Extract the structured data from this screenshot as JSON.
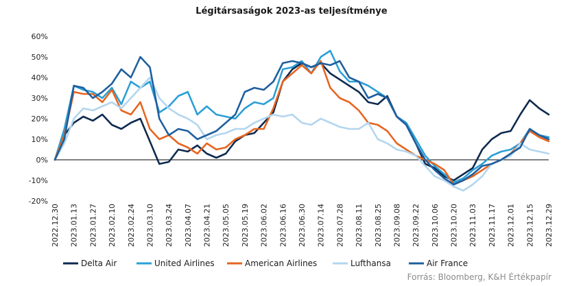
{
  "chart_data": {
    "type": "line",
    "title": "Légitársaságok 2023-as teljesítménye",
    "ylim": [
      -20,
      60
    ],
    "yticks": [
      "-20%",
      "-10%",
      "0%",
      "10%",
      "20%",
      "30%",
      "40%",
      "50%",
      "60%"
    ],
    "ytick_values": [
      -20,
      -10,
      0,
      10,
      20,
      30,
      40,
      50,
      60
    ],
    "xlim": [
      "2022-12-30",
      "2023-12-29"
    ],
    "xtick_labels": [
      "2022.12.30",
      "2023.01.13",
      "2023.01.27",
      "2023.02.10",
      "2023.02.24",
      "2023.03.10",
      "2023.03.24",
      "2023.04.07",
      "2023.04.21",
      "2023.05.05",
      "2023.05.19",
      "2023.06.02",
      "2023.06.16",
      "2023.06.30",
      "2023.07.14",
      "2023.07.28",
      "2023.08.11",
      "2023.08.25",
      "2023.09.08",
      "2023.09.22",
      "2023.10.06",
      "2023.10.20",
      "2023.11.03",
      "2023.11.17",
      "2023.12.01",
      "2023.12.15",
      "2023.12.29"
    ],
    "grid": false,
    "legend_position": "bottom",
    "source": "Forrás: Bloomberg, K&H Értékpapír",
    "series": [
      {
        "name": "Delta Air",
        "color": "#0d2a4e",
        "x": [
          "2022-12-30",
          "2023-01-06",
          "2023-01-13",
          "2023-01-20",
          "2023-01-27",
          "2023-02-03",
          "2023-02-10",
          "2023-02-17",
          "2023-02-24",
          "2023-03-03",
          "2023-03-10",
          "2023-03-17",
          "2023-03-24",
          "2023-03-31",
          "2023-04-07",
          "2023-04-14",
          "2023-04-21",
          "2023-04-28",
          "2023-05-05",
          "2023-05-12",
          "2023-05-19",
          "2023-05-26",
          "2023-06-02",
          "2023-06-09",
          "2023-06-16",
          "2023-06-23",
          "2023-06-30",
          "2023-07-07",
          "2023-07-14",
          "2023-07-21",
          "2023-07-28",
          "2023-08-04",
          "2023-08-11",
          "2023-08-18",
          "2023-08-25",
          "2023-09-01",
          "2023-09-08",
          "2023-09-15",
          "2023-09-22",
          "2023-09-29",
          "2023-10-06",
          "2023-10-13",
          "2023-10-20",
          "2023-10-27",
          "2023-11-03",
          "2023-11-10",
          "2023-11-17",
          "2023-11-24",
          "2023-12-01",
          "2023-12-08",
          "2023-12-15",
          "2023-12-22",
          "2023-12-29"
        ],
        "values": [
          0,
          12,
          18,
          21,
          19,
          22,
          17,
          15,
          18,
          20,
          9,
          -2,
          -1,
          5,
          4,
          7,
          3,
          1,
          3,
          9,
          12,
          13,
          18,
          23,
          38,
          44,
          47,
          45,
          47,
          42,
          39,
          36,
          33,
          28,
          27,
          31,
          21,
          17,
          8,
          -2,
          -4,
          -8,
          -10,
          -7,
          -4,
          5,
          10,
          13,
          14,
          22,
          29,
          25,
          22
        ]
      },
      {
        "name": "United Airlines",
        "color": "#2b9fd6",
        "x": [
          "2022-12-30",
          "2023-01-06",
          "2023-01-13",
          "2023-01-20",
          "2023-01-27",
          "2023-02-03",
          "2023-02-10",
          "2023-02-17",
          "2023-02-24",
          "2023-03-03",
          "2023-03-10",
          "2023-03-17",
          "2023-03-24",
          "2023-03-31",
          "2023-04-07",
          "2023-04-14",
          "2023-04-21",
          "2023-04-28",
          "2023-05-05",
          "2023-05-12",
          "2023-05-19",
          "2023-05-26",
          "2023-06-02",
          "2023-06-09",
          "2023-06-16",
          "2023-06-23",
          "2023-06-30",
          "2023-07-07",
          "2023-07-14",
          "2023-07-21",
          "2023-07-28",
          "2023-08-04",
          "2023-08-11",
          "2023-08-18",
          "2023-08-25",
          "2023-09-01",
          "2023-09-08",
          "2023-09-15",
          "2023-09-22",
          "2023-09-29",
          "2023-10-06",
          "2023-10-13",
          "2023-10-20",
          "2023-10-27",
          "2023-11-03",
          "2023-11-10",
          "2023-11-17",
          "2023-11-24",
          "2023-12-01",
          "2023-12-08",
          "2023-12-15",
          "2023-12-22",
          "2023-12-29"
        ],
        "values": [
          0,
          15,
          36,
          34,
          33,
          30,
          35,
          27,
          38,
          35,
          38,
          23,
          26,
          31,
          33,
          22,
          26,
          22,
          21,
          20,
          25,
          28,
          27,
          30,
          44,
          45,
          48,
          42,
          50,
          53,
          43,
          38,
          38,
          36,
          33,
          30,
          21,
          18,
          10,
          2,
          -3,
          -7,
          -11,
          -9,
          -5,
          -2,
          2,
          4,
          5,
          8,
          15,
          12,
          11
        ]
      },
      {
        "name": "American Airlines",
        "color": "#e8641f",
        "x": [
          "2022-12-30",
          "2023-01-06",
          "2023-01-13",
          "2023-01-20",
          "2023-01-27",
          "2023-02-03",
          "2023-02-10",
          "2023-02-17",
          "2023-02-24",
          "2023-03-03",
          "2023-03-10",
          "2023-03-17",
          "2023-03-24",
          "2023-03-31",
          "2023-04-07",
          "2023-04-14",
          "2023-04-21",
          "2023-04-28",
          "2023-05-05",
          "2023-05-12",
          "2023-05-19",
          "2023-05-26",
          "2023-06-02",
          "2023-06-09",
          "2023-06-16",
          "2023-06-23",
          "2023-06-30",
          "2023-07-07",
          "2023-07-14",
          "2023-07-21",
          "2023-07-28",
          "2023-08-04",
          "2023-08-11",
          "2023-08-18",
          "2023-08-25",
          "2023-09-01",
          "2023-09-08",
          "2023-09-15",
          "2023-09-22",
          "2023-09-29",
          "2023-10-06",
          "2023-10-13",
          "2023-10-20",
          "2023-10-27",
          "2023-11-03",
          "2023-11-10",
          "2023-11-17",
          "2023-11-24",
          "2023-12-01",
          "2023-12-08",
          "2023-12-15",
          "2023-12-22",
          "2023-12-29"
        ],
        "values": [
          0,
          12,
          33,
          32,
          32,
          28,
          34,
          24,
          22,
          28,
          15,
          10,
          12,
          8,
          6,
          3,
          8,
          5,
          6,
          10,
          12,
          15,
          15,
          25,
          38,
          42,
          46,
          42,
          48,
          35,
          30,
          28,
          24,
          18,
          17,
          14,
          8,
          5,
          2,
          0,
          -2,
          -5,
          -12,
          -10,
          -8,
          -5,
          -2,
          0,
          3,
          8,
          14,
          11,
          9
        ]
      },
      {
        "name": "Lufthansa",
        "color": "#b3d6ee",
        "x": [
          "2022-12-30",
          "2023-01-06",
          "2023-01-13",
          "2023-01-20",
          "2023-01-27",
          "2023-02-03",
          "2023-02-10",
          "2023-02-17",
          "2023-02-24",
          "2023-03-03",
          "2023-03-10",
          "2023-03-17",
          "2023-03-24",
          "2023-03-31",
          "2023-04-07",
          "2023-04-14",
          "2023-04-21",
          "2023-04-28",
          "2023-05-05",
          "2023-05-12",
          "2023-05-19",
          "2023-05-26",
          "2023-06-02",
          "2023-06-09",
          "2023-06-16",
          "2023-06-23",
          "2023-06-30",
          "2023-07-07",
          "2023-07-14",
          "2023-07-21",
          "2023-07-28",
          "2023-08-04",
          "2023-08-11",
          "2023-08-18",
          "2023-08-25",
          "2023-09-01",
          "2023-09-08",
          "2023-09-15",
          "2023-09-22",
          "2023-09-29",
          "2023-10-06",
          "2023-10-13",
          "2023-10-20",
          "2023-10-27",
          "2023-11-03",
          "2023-11-10",
          "2023-11-17",
          "2023-11-24",
          "2023-12-01",
          "2023-12-08",
          "2023-12-15",
          "2023-12-22",
          "2023-12-29"
        ],
        "values": [
          0,
          8,
          20,
          25,
          24,
          26,
          28,
          25,
          30,
          35,
          40,
          30,
          25,
          22,
          20,
          17,
          10,
          12,
          13,
          15,
          15,
          18,
          20,
          22,
          21,
          22,
          18,
          17,
          20,
          18,
          16,
          15,
          15,
          18,
          10,
          8,
          5,
          4,
          2,
          -3,
          -8,
          -10,
          -13,
          -15,
          -12,
          -8,
          -2,
          0,
          2,
          8,
          5,
          4,
          3
        ]
      },
      {
        "name": "Air France",
        "color": "#1e5f9f",
        "x": [
          "2022-12-30",
          "2023-01-06",
          "2023-01-13",
          "2023-01-20",
          "2023-01-27",
          "2023-02-03",
          "2023-02-10",
          "2023-02-17",
          "2023-02-24",
          "2023-03-03",
          "2023-03-10",
          "2023-03-17",
          "2023-03-24",
          "2023-03-31",
          "2023-04-07",
          "2023-04-14",
          "2023-04-21",
          "2023-04-28",
          "2023-05-05",
          "2023-05-12",
          "2023-05-19",
          "2023-05-26",
          "2023-06-02",
          "2023-06-09",
          "2023-06-16",
          "2023-06-23",
          "2023-06-30",
          "2023-07-07",
          "2023-07-14",
          "2023-07-21",
          "2023-07-28",
          "2023-08-04",
          "2023-08-11",
          "2023-08-18",
          "2023-08-25",
          "2023-09-01",
          "2023-09-08",
          "2023-09-15",
          "2023-09-22",
          "2023-09-29",
          "2023-10-06",
          "2023-10-13",
          "2023-10-20",
          "2023-10-27",
          "2023-11-03",
          "2023-11-10",
          "2023-11-17",
          "2023-11-24",
          "2023-12-01",
          "2023-12-08",
          "2023-12-15",
          "2023-12-22",
          "2023-12-29"
        ],
        "values": [
          0,
          10,
          36,
          35,
          30,
          33,
          37,
          44,
          40,
          50,
          45,
          20,
          12,
          15,
          14,
          10,
          12,
          14,
          18,
          22,
          33,
          35,
          34,
          38,
          47,
          48,
          47,
          45,
          47,
          46,
          48,
          40,
          38,
          30,
          32,
          30,
          21,
          17,
          8,
          0,
          -5,
          -9,
          -12,
          -10,
          -7,
          -3,
          -2,
          0,
          3,
          6,
          15,
          12,
          10
        ]
      }
    ]
  }
}
